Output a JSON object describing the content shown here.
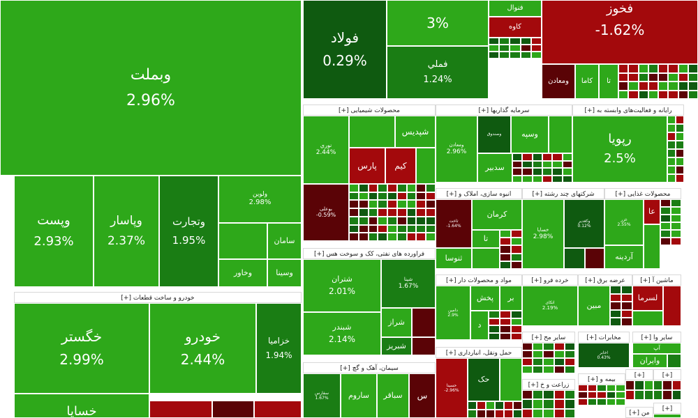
{
  "colors": {
    "up": "#2ea81a",
    "upDark": "#1a7d14",
    "upDeep": "#0f5a10",
    "down": "#a3090c",
    "downDeep": "#5a0306",
    "border": "#ffffff"
  },
  "sectors": [
    {
      "key": "s_auto",
      "label": "[+] خودرو و ساخت قطعات"
    },
    {
      "key": "s_chem",
      "label": "[+] محصولات شیمیایی"
    },
    {
      "key": "s_inv",
      "label": "[+] سرمایه گذاریها"
    },
    {
      "key": "s_fin",
      "label": "[+] رایانه و فعالیت‌های وابسته به"
    },
    {
      "key": "s_oil",
      "label": "[+] فراورده های نفتی، کک و سوخت هس"
    },
    {
      "key": "s_mass",
      "label": "[+] انبوه سازی، املاک و"
    },
    {
      "key": "s_multi",
      "label": "[+] شرکتهای چند رشته"
    },
    {
      "key": "s_food",
      "label": "[+] محصولات غذایی"
    },
    {
      "key": "s_mat",
      "label": "[+] مواد و محصولات دار"
    },
    {
      "key": "s_retail",
      "label": "[+] خرده فرو"
    },
    {
      "key": "s_power",
      "label": "[+] عرضه برق"
    },
    {
      "key": "s_mach",
      "label": "[+] ماشین آ"
    },
    {
      "key": "s_trans",
      "label": "[+] حمل ونقل، انبارداری"
    },
    {
      "key": "s_other",
      "label": "[+] سایر مح"
    },
    {
      "key": "s_tele",
      "label": "[+] مخابرات"
    },
    {
      "key": "s_other2",
      "label": "[+] سایر وا"
    },
    {
      "key": "s_cement",
      "label": "[+] سیمان، آهک و گچ"
    },
    {
      "key": "s_agri",
      "label": "[+] زراعت و خ"
    },
    {
      "key": "s_ins",
      "label": "[+] بیمه و"
    },
    {
      "key": "s_misc1",
      "label": "[+]"
    },
    {
      "key": "s_misc2",
      "label": "[+]"
    },
    {
      "key": "s_bank",
      "label": "[+] من"
    },
    {
      "key": "s_misc3",
      "label": "[+]"
    }
  ],
  "tiles": [
    {
      "name": "وبملت",
      "pct": "2.96%"
    },
    {
      "name": "وپست",
      "pct": "2.93%"
    },
    {
      "name": "وپاسار",
      "pct": "2.37%"
    },
    {
      "name": "وتجارت",
      "pct": "1.95%"
    },
    {
      "name": "ولوین",
      "pct": "2.98%"
    },
    {
      "name": "سامان",
      "pct": ""
    },
    {
      "name": "وخاور",
      "pct": ""
    },
    {
      "name": "وسینا",
      "pct": ""
    },
    {
      "name": "فولاد",
      "pct": "0.29%"
    },
    {
      "name": "",
      "pct": "3%"
    },
    {
      "name": "فملي",
      "pct": "1.24%"
    },
    {
      "name": "فنوال",
      "pct": ""
    },
    {
      "name": "کاوه",
      "pct": ""
    },
    {
      "name": "فخوز",
      "pct": "-1.62%"
    },
    {
      "name": "ومعادن",
      "pct": ""
    },
    {
      "name": "کاما",
      "pct": ""
    },
    {
      "name": "تا",
      "pct": ""
    },
    {
      "name": "خگستر",
      "pct": "2.99%"
    },
    {
      "name": "خودرو",
      "pct": "2.44%"
    },
    {
      "name": "خزامیا",
      "pct": "1.94%"
    },
    {
      "name": "خساپا",
      "pct": ""
    },
    {
      "name": "نوري",
      "pct": "2.44%"
    },
    {
      "name": "شپديس",
      "pct": ""
    },
    {
      "name": "پارس",
      "pct": ""
    },
    {
      "name": "کیم",
      "pct": ""
    },
    {
      "name": "بوعلی",
      "pct": "-0.59%"
    },
    {
      "name": "وسپه",
      "pct": ""
    },
    {
      "name": "وصندوق",
      "pct": ""
    },
    {
      "name": "ومعادن",
      "pct": "2.96%"
    },
    {
      "name": "سدبیر",
      "pct": ""
    },
    {
      "name": "رپویا",
      "pct": "2.5%"
    },
    {
      "name": "شتران",
      "pct": "2.01%"
    },
    {
      "name": "شپنا",
      "pct": "1.67%"
    },
    {
      "name": "شراز",
      "pct": ""
    },
    {
      "name": "شبندر",
      "pct": "2.14%"
    },
    {
      "name": "شبریز",
      "pct": ""
    },
    {
      "name": "کرمان",
      "pct": ""
    },
    {
      "name": "ثاخت",
      "pct": "-1.64%"
    },
    {
      "name": "تا",
      "pct": ""
    },
    {
      "name": "ثنوسا",
      "pct": ""
    },
    {
      "name": "خساپا",
      "pct": "2.98%"
    },
    {
      "name": "وکغدیر",
      "pct": "0.12%"
    },
    {
      "name": "غزر",
      "pct": "2.55%"
    },
    {
      "name": "آردینه",
      "pct": ""
    },
    {
      "name": "عا",
      "pct": ""
    },
    {
      "name": "پخش",
      "pct": ""
    },
    {
      "name": "دامین",
      "pct": "2.9%"
    },
    {
      "name": "بر",
      "pct": ""
    },
    {
      "name": "د",
      "pct": ""
    },
    {
      "name": "اتکای",
      "pct": "2.19%"
    },
    {
      "name": "مبین",
      "pct": ""
    },
    {
      "name": "لسرما",
      "pct": ""
    },
    {
      "name": "حک",
      "pct": ""
    },
    {
      "name": "حسینا",
      "pct": "-2.96%"
    },
    {
      "name": "اخابر",
      "pct": "0.43%"
    },
    {
      "name": "وایران",
      "pct": ""
    },
    {
      "name": "آپ",
      "pct": ""
    },
    {
      "name": "ساروم",
      "pct": ""
    },
    {
      "name": "سباقر",
      "pct": ""
    },
    {
      "name": "سفارس",
      "pct": "1.67%"
    },
    {
      "name": "س",
      "pct": ""
    }
  ]
}
